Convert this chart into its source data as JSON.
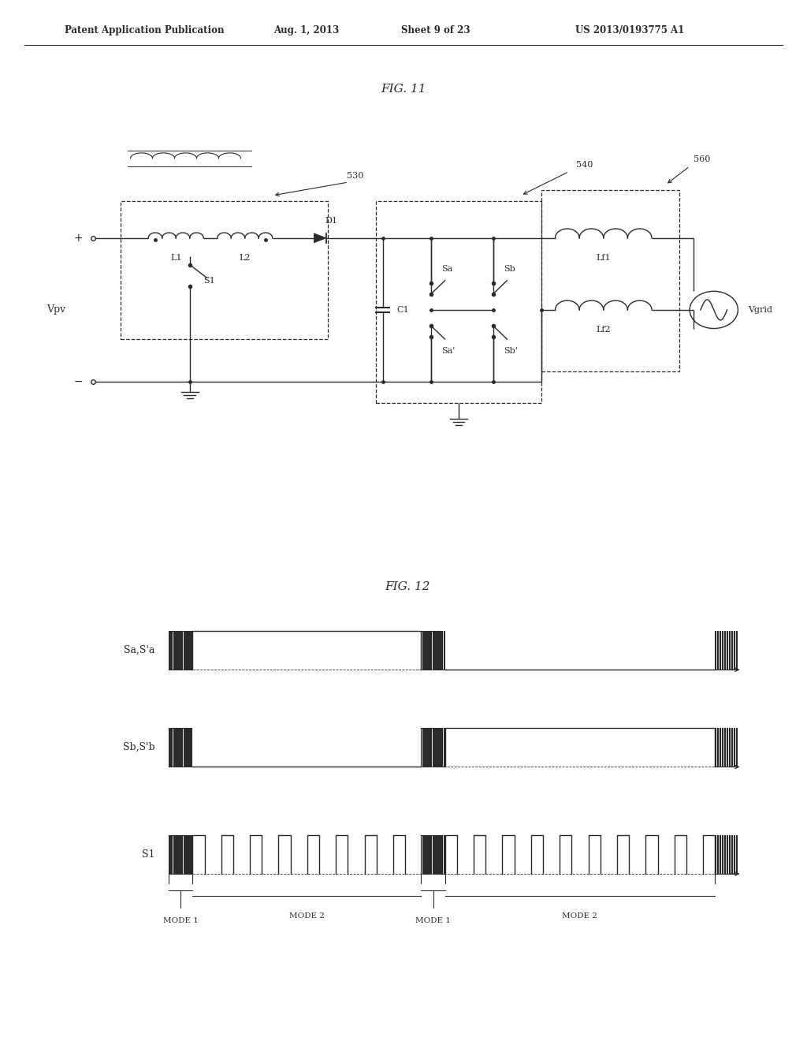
{
  "bg_color": "#ffffff",
  "line_color": "#2a2a2a",
  "fig_width": 10.24,
  "fig_height": 13.2,
  "header_line1": "Patent Application Publication",
  "header_line2": "Aug. 1, 2013",
  "header_line3": "Sheet 9 of 23",
  "header_line4": "US 2013/0193775 A1",
  "fig11_title": "FIG. 11",
  "fig12_title": "FIG. 12",
  "label_530": "530",
  "label_540": "540",
  "label_560": "560",
  "label_vpv": "Vpv",
  "label_vgrid": "Vgrid",
  "label_d1": "D1",
  "label_l1": "L1",
  "label_l2": "L2",
  "label_lf1": "Lf1",
  "label_lf2": "Lf2",
  "label_c1": "C1",
  "label_s1": "S1",
  "label_sa": "Sa",
  "label_sa_prime": "Sa'",
  "label_sb": "Sb",
  "label_sb_prime": "Sb'",
  "waveform_sa_label": "Sa,S'a",
  "waveform_sb_label": "Sb,S'b",
  "waveform_s1_label": "S1",
  "mode1_label": "MODE 1",
  "mode2_label": "MODE 2"
}
